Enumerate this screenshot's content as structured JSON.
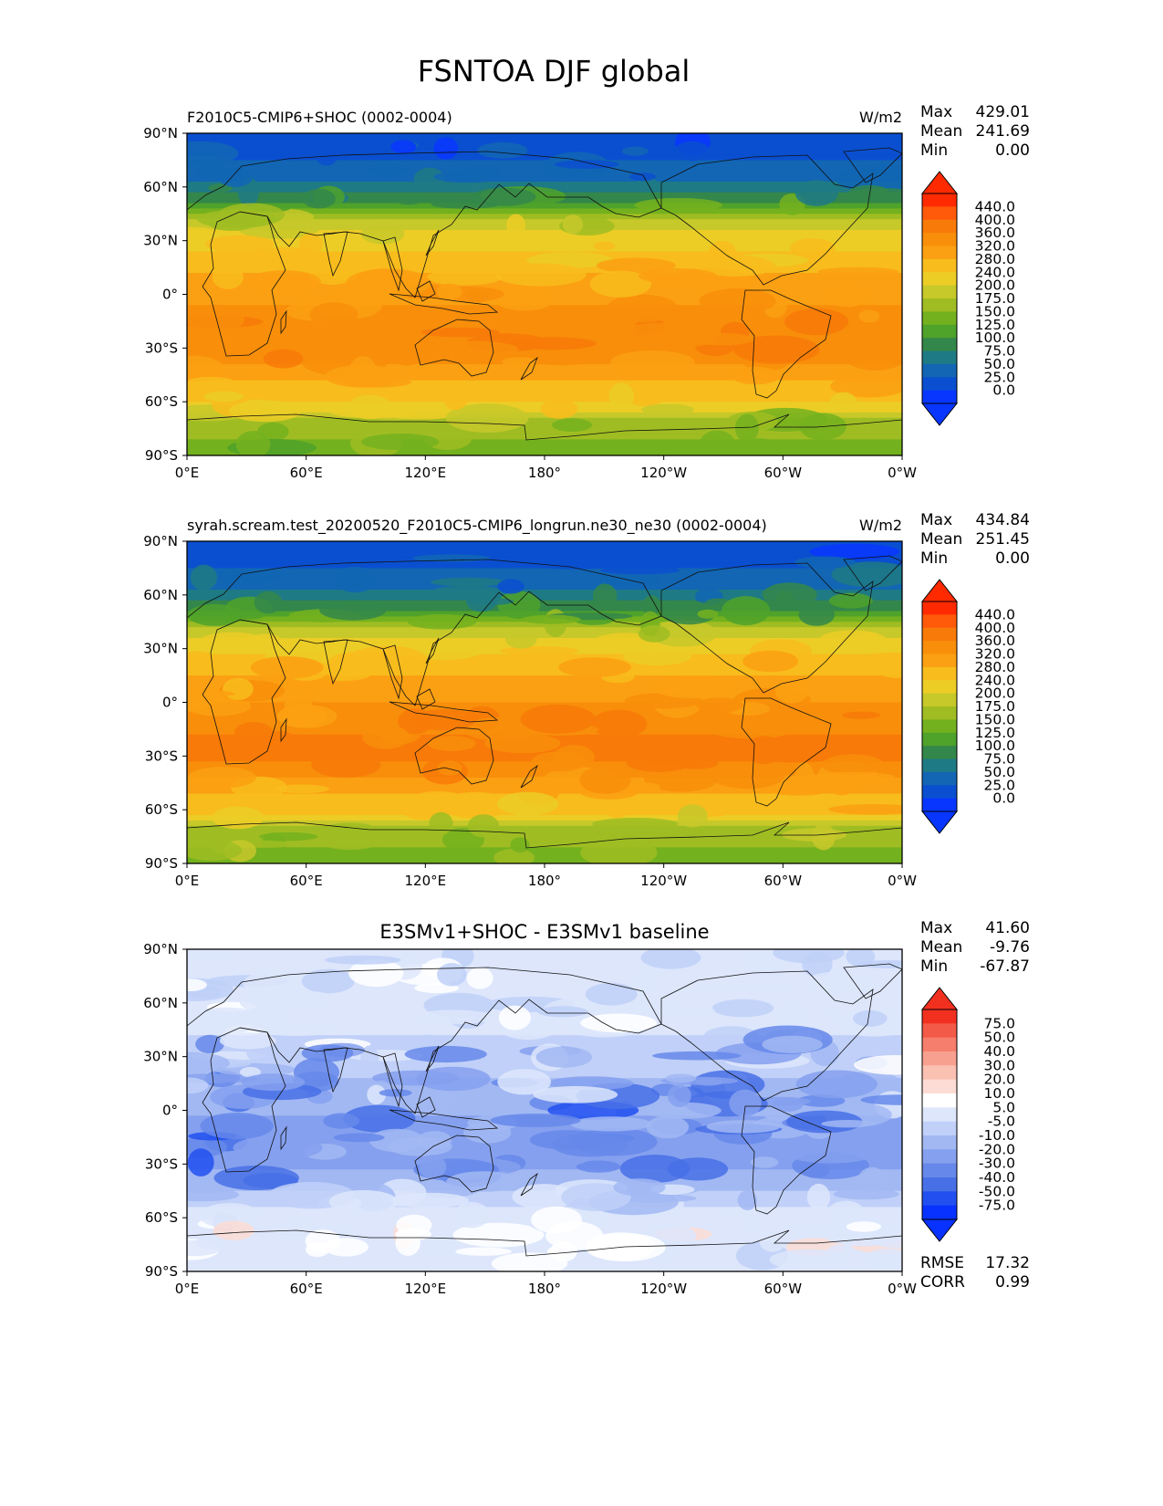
{
  "figure_title": "FSNTOA DJF global",
  "chart_data": [
    {
      "type": "heatmap",
      "kind": "test",
      "title": "F2010C5-CMIP6+SHOC (0002-0004)",
      "units": "W/m2",
      "stats": {
        "max_label": "Max",
        "max": "429.01",
        "mean_label": "Mean",
        "mean": "241.69",
        "min_label": "Min",
        "min": "0.00"
      },
      "colorbar_ticks": [
        "440.0",
        "400.0",
        "360.0",
        "320.0",
        "280.0",
        "240.0",
        "200.0",
        "175.0",
        "150.0",
        "125.0",
        "100.0",
        "75.0",
        "50.0",
        "25.0",
        "0.0"
      ],
      "colorbar_colors": [
        "#ff2a00",
        "#ff5a0a",
        "#f87a08",
        "#f88e0a",
        "#fba012",
        "#f8bc1c",
        "#eccd26",
        "#c7c82a",
        "#9fbd22",
        "#74b11e",
        "#4fa22a",
        "#34874a",
        "#1e7a84",
        "#1266b4",
        "#0a4fd0",
        "#0836ff"
      ],
      "extend_colors": {
        "top": "#ff2a00",
        "bottom": "#0836ff"
      },
      "x_ticks": [
        "0°E",
        "60°E",
        "120°E",
        "180°",
        "120°W",
        "60°W",
        "0°W"
      ],
      "y_ticks": [
        "90°N",
        "60°N",
        "30°N",
        "0°",
        "30°S",
        "60°S",
        "90°S"
      ],
      "zonal_profile": [
        {
          "lat": 90,
          "value": 0
        },
        {
          "lat": 80,
          "value": 15
        },
        {
          "lat": 70,
          "value": 35
        },
        {
          "lat": 60,
          "value": 60
        },
        {
          "lat": 50,
          "value": 110
        },
        {
          "lat": 40,
          "value": 180
        },
        {
          "lat": 30,
          "value": 220
        },
        {
          "lat": 20,
          "value": 260
        },
        {
          "lat": 10,
          "value": 285
        },
        {
          "lat": 0,
          "value": 305
        },
        {
          "lat": -10,
          "value": 330
        },
        {
          "lat": -20,
          "value": 350
        },
        {
          "lat": -30,
          "value": 355
        },
        {
          "lat": -40,
          "value": 320
        },
        {
          "lat": -50,
          "value": 270
        },
        {
          "lat": -60,
          "value": 250
        },
        {
          "lat": -70,
          "value": 160
        },
        {
          "lat": -80,
          "value": 150
        },
        {
          "lat": -90,
          "value": 145
        }
      ]
    },
    {
      "type": "heatmap",
      "kind": "reference",
      "title": "syrah.scream.test_20200520_F2010C5-CMIP6_longrun.ne30_ne30 (0002-0004)",
      "units": "W/m2",
      "stats": {
        "max_label": "Max",
        "max": "434.84",
        "mean_label": "Mean",
        "mean": "251.45",
        "min_label": "Min",
        "min": "0.00"
      },
      "colorbar_ticks": [
        "440.0",
        "400.0",
        "360.0",
        "320.0",
        "280.0",
        "240.0",
        "200.0",
        "175.0",
        "150.0",
        "125.0",
        "100.0",
        "75.0",
        "50.0",
        "25.0",
        "0.0"
      ],
      "colorbar_colors": [
        "#ff2a00",
        "#ff5a0a",
        "#f87a08",
        "#f88e0a",
        "#fba012",
        "#f8bc1c",
        "#eccd26",
        "#c7c82a",
        "#9fbd22",
        "#74b11e",
        "#4fa22a",
        "#34874a",
        "#1e7a84",
        "#1266b4",
        "#0a4fd0",
        "#0836ff"
      ],
      "extend_colors": {
        "top": "#ff2a00",
        "bottom": "#0836ff"
      },
      "x_ticks": [
        "0°E",
        "60°E",
        "120°E",
        "180°",
        "120°W",
        "60°W",
        "0°W"
      ],
      "y_ticks": [
        "90°N",
        "60°N",
        "30°N",
        "0°",
        "30°S",
        "60°S",
        "90°S"
      ],
      "zonal_profile": [
        {
          "lat": 90,
          "value": 0
        },
        {
          "lat": 80,
          "value": 15
        },
        {
          "lat": 70,
          "value": 35
        },
        {
          "lat": 60,
          "value": 60
        },
        {
          "lat": 50,
          "value": 110
        },
        {
          "lat": 40,
          "value": 185
        },
        {
          "lat": 30,
          "value": 230
        },
        {
          "lat": 20,
          "value": 265
        },
        {
          "lat": 10,
          "value": 300
        },
        {
          "lat": 0,
          "value": 320
        },
        {
          "lat": -10,
          "value": 345
        },
        {
          "lat": -20,
          "value": 365
        },
        {
          "lat": -30,
          "value": 370
        },
        {
          "lat": -40,
          "value": 330
        },
        {
          "lat": -50,
          "value": 280
        },
        {
          "lat": -60,
          "value": 255
        },
        {
          "lat": -70,
          "value": 160
        },
        {
          "lat": -80,
          "value": 150
        },
        {
          "lat": -90,
          "value": 145
        }
      ]
    },
    {
      "type": "heatmap",
      "kind": "difference",
      "title": "E3SMv1+SHOC - E3SMv1 baseline",
      "units": "",
      "stats": {
        "max_label": "Max",
        "max": "41.60",
        "mean_label": "Mean",
        "mean": "-9.76",
        "min_label": "Min",
        "min": "-67.87"
      },
      "colorbar_ticks": [
        "75.0",
        "50.0",
        "40.0",
        "30.0",
        "20.0",
        "10.0",
        "5.0",
        "-5.0",
        "-10.0",
        "-20.0",
        "-30.0",
        "-40.0",
        "-50.0",
        "-75.0"
      ],
      "colorbar_colors": [
        "#f23020",
        "#f45a48",
        "#f67e6c",
        "#f8a090",
        "#fac0b2",
        "#fcdcd4",
        "#ffffff",
        "#dde6fb",
        "#c0d0f8",
        "#a2b8f3",
        "#85a0ee",
        "#6688ea",
        "#4870e6",
        "#2250f0",
        "#0832ff"
      ],
      "extend_colors": {
        "top": "#f23020",
        "bottom": "#0832ff"
      },
      "x_ticks": [
        "0°E",
        "60°E",
        "120°E",
        "180°",
        "120°W",
        "60°W",
        "0°W"
      ],
      "y_ticks": [
        "90°N",
        "60°N",
        "30°N",
        "0°",
        "30°S",
        "60°S",
        "90°S"
      ],
      "zonal_profile": [
        {
          "lat": 90,
          "value": 0
        },
        {
          "lat": 70,
          "value": 0
        },
        {
          "lat": 50,
          "value": 0
        },
        {
          "lat": 40,
          "value": -6
        },
        {
          "lat": 30,
          "value": -8
        },
        {
          "lat": 20,
          "value": -9
        },
        {
          "lat": 10,
          "value": -14
        },
        {
          "lat": 0,
          "value": -18
        },
        {
          "lat": -10,
          "value": -26
        },
        {
          "lat": -20,
          "value": -28
        },
        {
          "lat": -30,
          "value": -22
        },
        {
          "lat": -40,
          "value": -15
        },
        {
          "lat": -50,
          "value": -7
        },
        {
          "lat": -60,
          "value": 0
        },
        {
          "lat": -70,
          "value": 3
        },
        {
          "lat": -90,
          "value": 0
        }
      ],
      "rmse_label": "RMSE",
      "rmse": "17.32",
      "corr_label": "CORR",
      "corr": "0.99"
    }
  ]
}
